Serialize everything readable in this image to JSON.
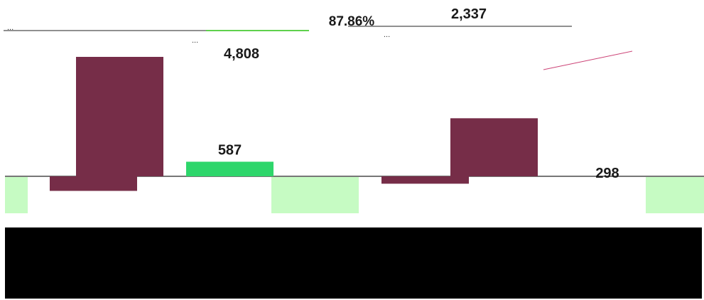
{
  "colors": {
    "bar_dark": "#762d48",
    "bar_green": "#2ed66b",
    "band_green": "#c6fbc3",
    "baseline": "#777777",
    "accent_green": "#5ed14c"
  },
  "chart_data": {
    "type": "bar",
    "series": [
      {
        "values": [
          4808,
          -587,
          587,
          2337,
          -298
        ]
      }
    ],
    "data_labels": [
      "4,808",
      "",
      "587",
      "2,337",
      "298"
    ],
    "percent_label": "87.86%",
    "ylim": [
      -1100,
      5300
    ],
    "grid": false,
    "legend": "none"
  },
  "annotations": {
    "top_right_text": "2,337",
    "garbled_top_left": "...",
    "garbled_center": "...",
    "garbled_center_right": "..."
  }
}
